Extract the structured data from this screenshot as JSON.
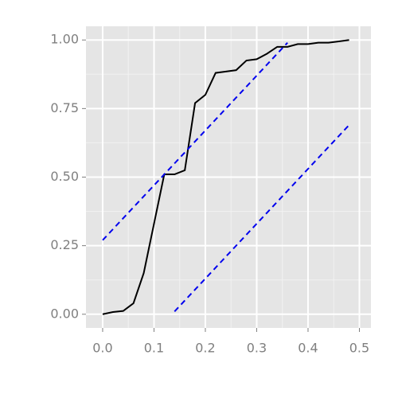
{
  "chart_data": {
    "type": "line",
    "xlim": [
      -0.0325,
      0.5225
    ],
    "ylim": [
      -0.05,
      1.05
    ],
    "xticks": [
      {
        "value": 0,
        "label": "0.0"
      },
      0.1,
      0.2,
      0.3,
      0.4,
      0.5
    ],
    "yticks": [
      {
        "value": 0,
        "label": "0.00"
      },
      0.25,
      {
        "value": 0.5,
        "label": "0.50"
      },
      0.75,
      {
        "value": 1,
        "label": "1.00"
      }
    ],
    "xminorticks": [
      0.05,
      0.15,
      0.25,
      0.35,
      0.45
    ],
    "yminorticks": [
      0.125,
      0.375,
      0.625,
      0.875
    ],
    "grid": true,
    "series": [
      {
        "color": "#000000",
        "dash": false,
        "x": [
          0,
          0.02,
          0.04,
          0.06,
          0.08,
          0.1,
          0.12,
          0.14,
          0.16,
          0.18,
          0.2,
          0.22,
          0.24,
          0.26,
          0.28,
          0.3,
          0.32,
          0.34,
          0.36,
          0.38,
          0.4,
          0.42,
          0.44,
          0.46,
          0.48
        ],
        "values": [
          0,
          0.008,
          0.012,
          0.04,
          0.15,
          0.33,
          0.51,
          0.51,
          0.525,
          0.77,
          0.8,
          0.88,
          0.885,
          0.89,
          0.925,
          0.93,
          0.95,
          0.975,
          0.975,
          0.985,
          0.985,
          0.99,
          0.99,
          0.995,
          1.0
        ]
      },
      {
        "color": "#0000ee",
        "dash": true,
        "x": [
          0,
          0.36
        ],
        "values": [
          0.27,
          0.99
        ]
      },
      {
        "color": "#0000ee",
        "dash": true,
        "x": [
          0.14,
          0.48
        ],
        "values": [
          0.01,
          0.69
        ]
      }
    ]
  }
}
